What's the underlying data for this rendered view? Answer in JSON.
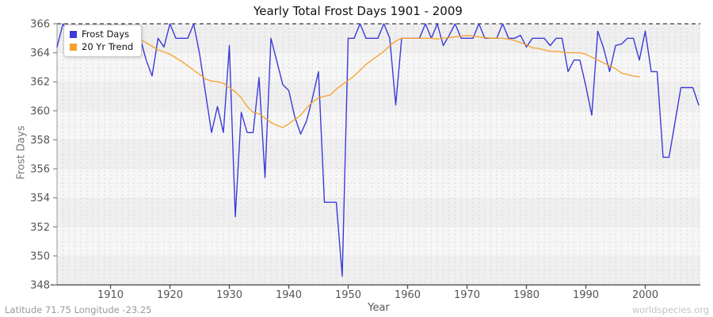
{
  "title": "Yearly Total Frost Days 1901 - 2009",
  "footer": {
    "left": "Latitude 71.75 Longitude -23.25",
    "right": "worldspecies.org"
  },
  "colors": {
    "frost_days_line": "#3b3bd8",
    "trend_line": "#f5a02d",
    "band_dark": "#efefef",
    "band_light": "#f6f6f6",
    "year_grid": "#d9d9d9",
    "unit_grid": "#e3e3e3",
    "top_dashed_line": "#3a3a3a",
    "axis": "#666666",
    "tick_text": "#555555"
  },
  "chart_data": {
    "type": "line",
    "title": "Yearly Total Frost Days 1901 - 2009",
    "xlabel": "Year",
    "ylabel": "Frost Days",
    "xlim": [
      1901,
      2009
    ],
    "ylim": [
      348,
      366
    ],
    "xticks": [
      1910,
      1920,
      1930,
      1940,
      1950,
      1960,
      1970,
      1980,
      1990,
      2000
    ],
    "yticks": [
      348,
      350,
      352,
      354,
      356,
      358,
      360,
      362,
      364,
      366
    ],
    "grid": true,
    "legend": {
      "position": "top-left",
      "entries": [
        {
          "label": "Frost Days",
          "color": "#3b3bd8"
        },
        {
          "label": "20 Yr Trend",
          "color": "#f5a02d"
        }
      ]
    },
    "series": [
      {
        "name": "Frost Days",
        "color": "#3b3bd8",
        "start_year": 1901,
        "values": [
          364.4,
          366,
          365.2,
          365.8,
          365,
          365.5,
          364.8,
          365.5,
          365,
          366,
          365.3,
          366,
          365,
          365,
          365,
          363.5,
          362.4,
          365,
          364.4,
          366,
          365,
          365,
          365,
          366,
          363.9,
          361.2,
          358.5,
          360.3,
          358.5,
          364.5,
          352.7,
          359.9,
          358.5,
          358.5,
          362.3,
          355.4,
          365,
          363.4,
          361.8,
          361.4,
          359.6,
          358.4,
          359.3,
          360.9,
          362.7,
          353.7,
          353.7,
          353.7,
          348.6,
          365,
          365,
          366,
          365,
          365,
          365,
          366,
          365,
          360.4,
          365,
          365,
          365,
          365,
          366,
          365,
          366,
          364.5,
          365.2,
          366,
          365,
          365,
          365,
          366,
          365,
          365,
          365,
          366,
          365,
          365,
          365.2,
          364.4,
          365,
          365,
          365,
          364.5,
          365,
          365,
          362.7,
          363.5,
          363.5,
          361.7,
          359.7,
          365.5,
          364.3,
          362.7,
          364.5,
          364.6,
          365,
          365,
          363.5,
          365.5,
          362.7,
          362.7,
          356.8,
          356.8,
          359.2,
          361.6,
          361.6,
          361.6,
          360.4
        ]
      },
      {
        "name": "20 Yr Trend",
        "color": "#f5a02d",
        "start_year": 1911,
        "values": [
          365.0,
          364.9,
          364.8,
          364.85,
          364.9,
          364.7,
          364.45,
          364.2,
          364.05,
          363.9,
          363.65,
          363.4,
          363.1,
          362.8,
          362.5,
          362.2,
          362.05,
          362.0,
          361.9,
          361.6,
          361.3,
          360.9,
          360.3,
          359.9,
          359.8,
          359.5,
          359.2,
          359.0,
          358.85,
          359.1,
          359.4,
          359.7,
          360.2,
          360.6,
          360.9,
          361.0,
          361.1,
          361.5,
          361.8,
          362.1,
          362.4,
          362.8,
          363.2,
          363.5,
          363.8,
          364.1,
          364.5,
          364.8,
          365.0,
          365.0,
          365.0,
          365.0,
          365.0,
          365.0,
          364.95,
          365.0,
          365.05,
          365.1,
          365.15,
          365.2,
          365.15,
          365.1,
          365.05,
          365.0,
          365.0,
          365.0,
          364.95,
          364.85,
          364.7,
          364.55,
          364.35,
          364.3,
          364.2,
          364.1,
          364.1,
          364.05,
          364.0,
          364.0,
          364.0,
          363.9,
          363.7,
          363.5,
          363.3,
          363.1,
          362.9,
          362.6,
          362.5,
          362.4,
          362.35
        ]
      }
    ]
  }
}
